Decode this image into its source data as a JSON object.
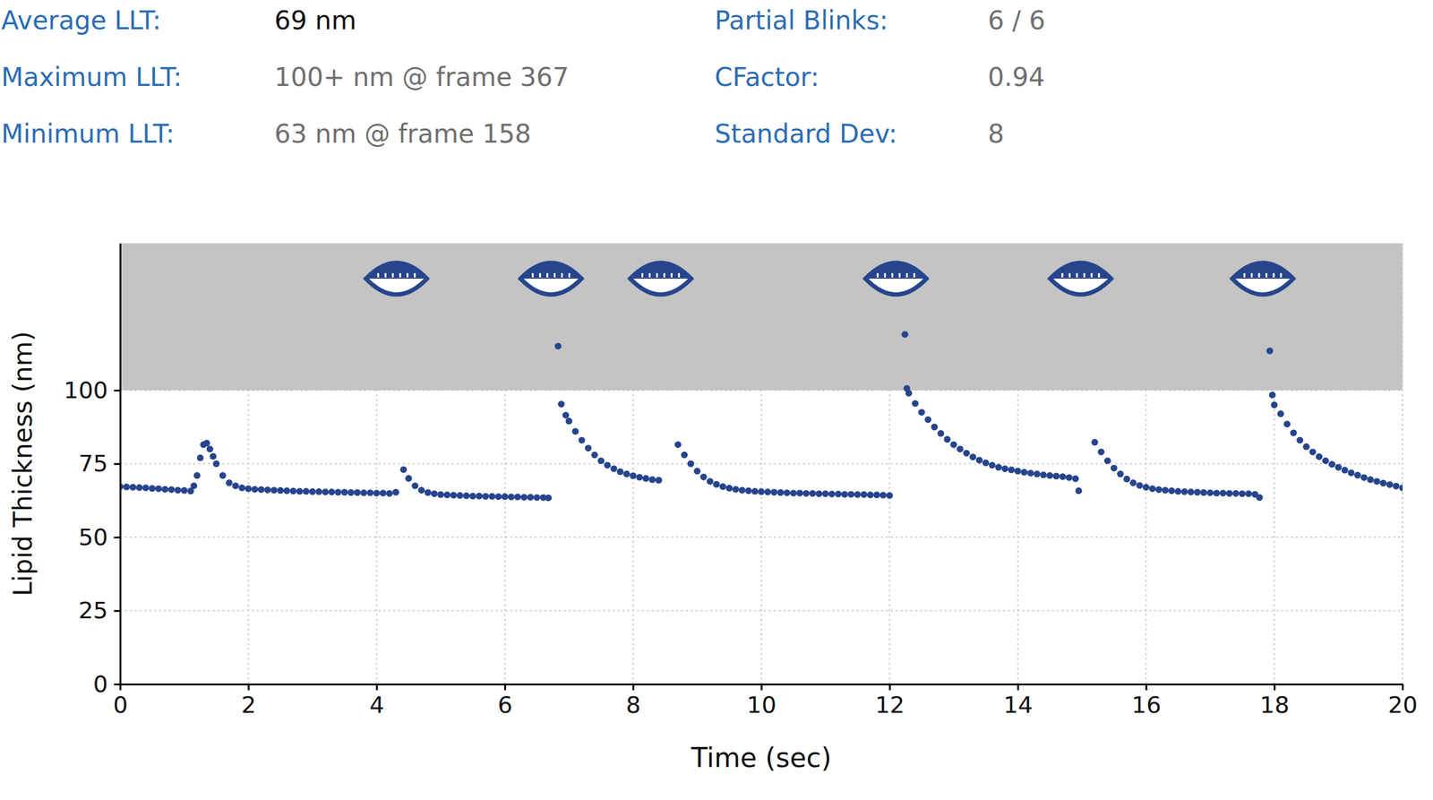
{
  "chart_data": {
    "type": "scatter",
    "annotations": [
      {
        "label": "Average LLT:",
        "value": "69 nm"
      },
      {
        "label": "Maximum LLT:",
        "value": "100+ nm @ frame 367"
      },
      {
        "label": "Minimum LLT:",
        "value": "63 nm @ frame 158"
      },
      {
        "label": "Partial Blinks:",
        "value": "6 / 6"
      },
      {
        "label": "CFactor:",
        "value": "0.94"
      },
      {
        "label": "Standard Dev:",
        "value": "8"
      }
    ],
    "x_label": "Time (sec)",
    "y_label": "Lipid Thickness (nm)",
    "xlim": [
      0,
      20
    ],
    "xticks": [
      0,
      2,
      4,
      6,
      8,
      10,
      12,
      14,
      16,
      18,
      20
    ],
    "ylim": [
      0,
      150
    ],
    "yticks": [
      0,
      25,
      50,
      75,
      100
    ],
    "grid": true,
    "color": "#26458d",
    "marker": "circle",
    "shaded_band": [
      100,
      150
    ],
    "blinks": [
      4.31,
      6.72,
      8.43,
      12.1,
      14.98,
      17.82
    ],
    "x": [
      0.0,
      0.1,
      0.2,
      0.3,
      0.4,
      0.5,
      0.6,
      0.7,
      0.8,
      0.9,
      1.0,
      1.1,
      1.15,
      1.2,
      1.25,
      1.3,
      1.35,
      1.4,
      1.45,
      1.5,
      1.6,
      1.7,
      1.8,
      1.9,
      2.0,
      2.1,
      2.2,
      2.3,
      2.4,
      2.5,
      2.6,
      2.7,
      2.8,
      2.9,
      3.0,
      3.1,
      3.2,
      3.3,
      3.4,
      3.5,
      3.6,
      3.7,
      3.8,
      3.9,
      4.0,
      4.1,
      4.2,
      4.3,
      4.42,
      4.5,
      4.6,
      4.7,
      4.8,
      4.9,
      5.0,
      5.1,
      5.2,
      5.3,
      5.4,
      5.5,
      5.6,
      5.7,
      5.8,
      5.9,
      6.0,
      6.1,
      6.2,
      6.3,
      6.4,
      6.5,
      6.6,
      6.68,
      6.83,
      6.88,
      6.95,
      7.0,
      7.1,
      7.2,
      7.3,
      7.4,
      7.5,
      7.6,
      7.7,
      7.8,
      7.9,
      8.0,
      8.1,
      8.2,
      8.3,
      8.4,
      8.7,
      8.8,
      8.9,
      9.0,
      9.1,
      9.2,
      9.3,
      9.4,
      9.5,
      9.6,
      9.7,
      9.8,
      9.9,
      10.0,
      10.1,
      10.2,
      10.3,
      10.4,
      10.5,
      10.6,
      10.7,
      10.8,
      10.9,
      11.0,
      11.1,
      11.2,
      11.3,
      11.4,
      11.5,
      11.6,
      11.7,
      11.8,
      11.9,
      12.0,
      12.24,
      12.27,
      12.3,
      12.4,
      12.5,
      12.6,
      12.7,
      12.8,
      12.9,
      13.0,
      13.1,
      13.2,
      13.3,
      13.4,
      13.5,
      13.6,
      13.7,
      13.8,
      13.9,
      14.0,
      14.1,
      14.2,
      14.3,
      14.4,
      14.5,
      14.6,
      14.7,
      14.8,
      14.9,
      14.95,
      15.2,
      15.3,
      15.4,
      15.5,
      15.6,
      15.7,
      15.8,
      15.9,
      16.0,
      16.1,
      16.2,
      16.3,
      16.4,
      16.5,
      16.6,
      16.7,
      16.8,
      16.9,
      17.0,
      17.1,
      17.2,
      17.3,
      17.4,
      17.5,
      17.6,
      17.7,
      17.77,
      17.93,
      17.97,
      18.0,
      18.1,
      18.2,
      18.3,
      18.4,
      18.5,
      18.6,
      18.7,
      18.8,
      18.9,
      19.0,
      19.1,
      19.2,
      19.3,
      19.4,
      19.5,
      19.6,
      19.7,
      19.8,
      19.9,
      20.0
    ],
    "values": [
      67.2,
      67.1,
      67.0,
      66.9,
      66.8,
      66.6,
      66.5,
      66.3,
      66.2,
      66.0,
      65.9,
      65.7,
      67.5,
      71,
      77,
      81.5,
      82,
      80,
      77.5,
      75,
      71,
      68.5,
      67.5,
      66.8,
      66.5,
      66.3,
      66.2,
      66.1,
      66.0,
      65.9,
      65.8,
      65.7,
      65.6,
      65.6,
      65.5,
      65.5,
      65.4,
      65.4,
      65.3,
      65.3,
      65.2,
      65.2,
      65.1,
      65.1,
      65.0,
      65.0,
      64.9,
      65.3,
      73,
      70,
      67.5,
      66,
      65.2,
      64.8,
      64.5,
      64.4,
      64.3,
      64.2,
      64.1,
      64.0,
      64.0,
      63.9,
      63.9,
      63.8,
      63.8,
      63.7,
      63.7,
      63.6,
      63.6,
      63.5,
      63.5,
      63.4,
      115,
      95.3,
      91.5,
      89.5,
      86,
      83,
      80.3,
      78,
      76,
      74.5,
      73.3,
      72.3,
      71.5,
      70.9,
      70.4,
      70.0,
      69.6,
      69.4,
      81.5,
      78,
      75,
      72.5,
      70.5,
      69,
      68,
      67.2,
      66.7,
      66.3,
      66.0,
      65.8,
      65.6,
      65.5,
      65.4,
      65.3,
      65.2,
      65.1,
      65.0,
      65.0,
      64.9,
      64.9,
      64.8,
      64.8,
      64.7,
      64.7,
      64.6,
      64.6,
      64.5,
      64.5,
      64.4,
      64.4,
      64.3,
      64.2,
      119,
      100.6,
      99,
      95.5,
      92.5,
      90,
      87.5,
      85.3,
      83.3,
      81.5,
      80,
      78.6,
      77.3,
      76.2,
      75.3,
      74.5,
      73.8,
      73.3,
      72.9,
      72.5,
      72.1,
      71.8,
      71.5,
      71.2,
      71.0,
      70.8,
      70.6,
      70.3,
      69.9,
      65.8,
      82.3,
      79,
      76,
      73.5,
      71.5,
      69.8,
      68.5,
      67.6,
      67.0,
      66.5,
      66.2,
      66.0,
      65.8,
      65.6,
      65.5,
      65.4,
      65.3,
      65.2,
      65.1,
      65.0,
      65.0,
      64.9,
      64.9,
      64.8,
      64.8,
      64.6,
      63.5,
      113.4,
      98.4,
      95,
      92,
      88.5,
      85.5,
      83,
      80.8,
      79,
      77.4,
      76,
      74.8,
      73.8,
      72.8,
      71.9,
      71.1,
      70.3,
      69.6,
      69.0,
      68.4,
      67.9,
      67.4,
      66.8
    ]
  }
}
